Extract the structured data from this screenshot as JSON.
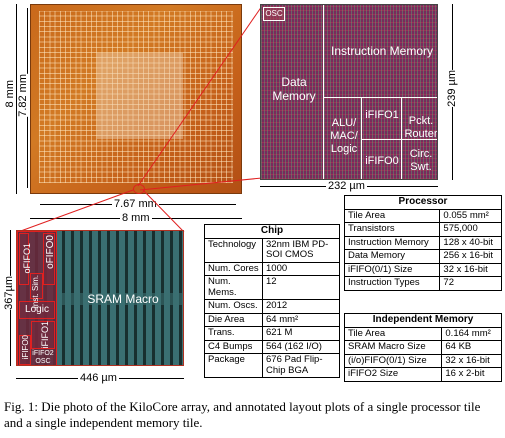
{
  "die": {
    "height_outer": "8 mm",
    "height_inner": "7.82 mm",
    "width_inner": "7.67 mm",
    "width_outer": "8 mm"
  },
  "tile": {
    "label_osc": "OSC",
    "label_instruction_memory": "Instruction Memory",
    "label_data_memory": "Data Memory",
    "label_alu": "ALU/ MAC/ Logic",
    "label_ififo1": "iFIFO1",
    "label_pckt_router": "Pckt. Router",
    "label_ififo0": "iFIFO0",
    "label_circ_swt": "Circ. Swt.",
    "width_dim": "232 µm",
    "height_dim": "239 µm"
  },
  "memtile": {
    "label_sram": "SRAM Macro",
    "label_ofifo0": "oFIFO0",
    "label_ofifo1": "oFIFO1",
    "label_inst_sim": "Inst. Sim.",
    "label_logic": "Logic",
    "label_ififo1": "iFIFO1",
    "label_ififo2": "iFIFO2",
    "label_osc": "OSC",
    "label_ififo0": "iFIFO0",
    "width_dim": "446 µm",
    "height_dim": "367µm"
  },
  "chip_table": {
    "title": "Chip",
    "rows": [
      {
        "k": "Technology",
        "v": "32nm IBM PD-SOI CMOS"
      },
      {
        "k": "Num. Cores",
        "v": "1000"
      },
      {
        "k": "Num. Mems.",
        "v": "12"
      },
      {
        "k": "Num. Oscs.",
        "v": "2012"
      },
      {
        "k": "Die Area",
        "v": "64 mm²"
      },
      {
        "k": "Trans.",
        "v": "621 M"
      },
      {
        "k": "C4 Bumps",
        "v": "564 (162 I/O)"
      },
      {
        "k": "Package",
        "v": "676 Pad Flip-Chip BGA"
      }
    ]
  },
  "processor_table": {
    "title": "Processor",
    "rows": [
      {
        "k": "Tile Area",
        "v": "0.055 mm²"
      },
      {
        "k": "Transistors",
        "v": "575,000"
      },
      {
        "k": "Instruction Memory",
        "v": "128 x 40-bit"
      },
      {
        "k": "Data Memory",
        "v": "256 x 16-bit"
      },
      {
        "k": "iFIFO(0/1) Size",
        "v": "32 x 16-bit"
      },
      {
        "k": "Instruction Types",
        "v": "72"
      }
    ]
  },
  "memory_table": {
    "title": "Independent Memory",
    "rows": [
      {
        "k": "Tile Area",
        "v": "0.164 mm²"
      },
      {
        "k": "SRAM Macro Size",
        "v": "64 KB"
      },
      {
        "k": "(i/o)FIFO(0/1) Size",
        "v": "32 x 16-bit"
      },
      {
        "k": "iFIFO2 Size",
        "v": "16 x 2-bit"
      }
    ]
  },
  "caption": "Fig. 1: Die photo of the KiloCore array, and annotated layout plots of a single processor tile and a single independent memory tile."
}
